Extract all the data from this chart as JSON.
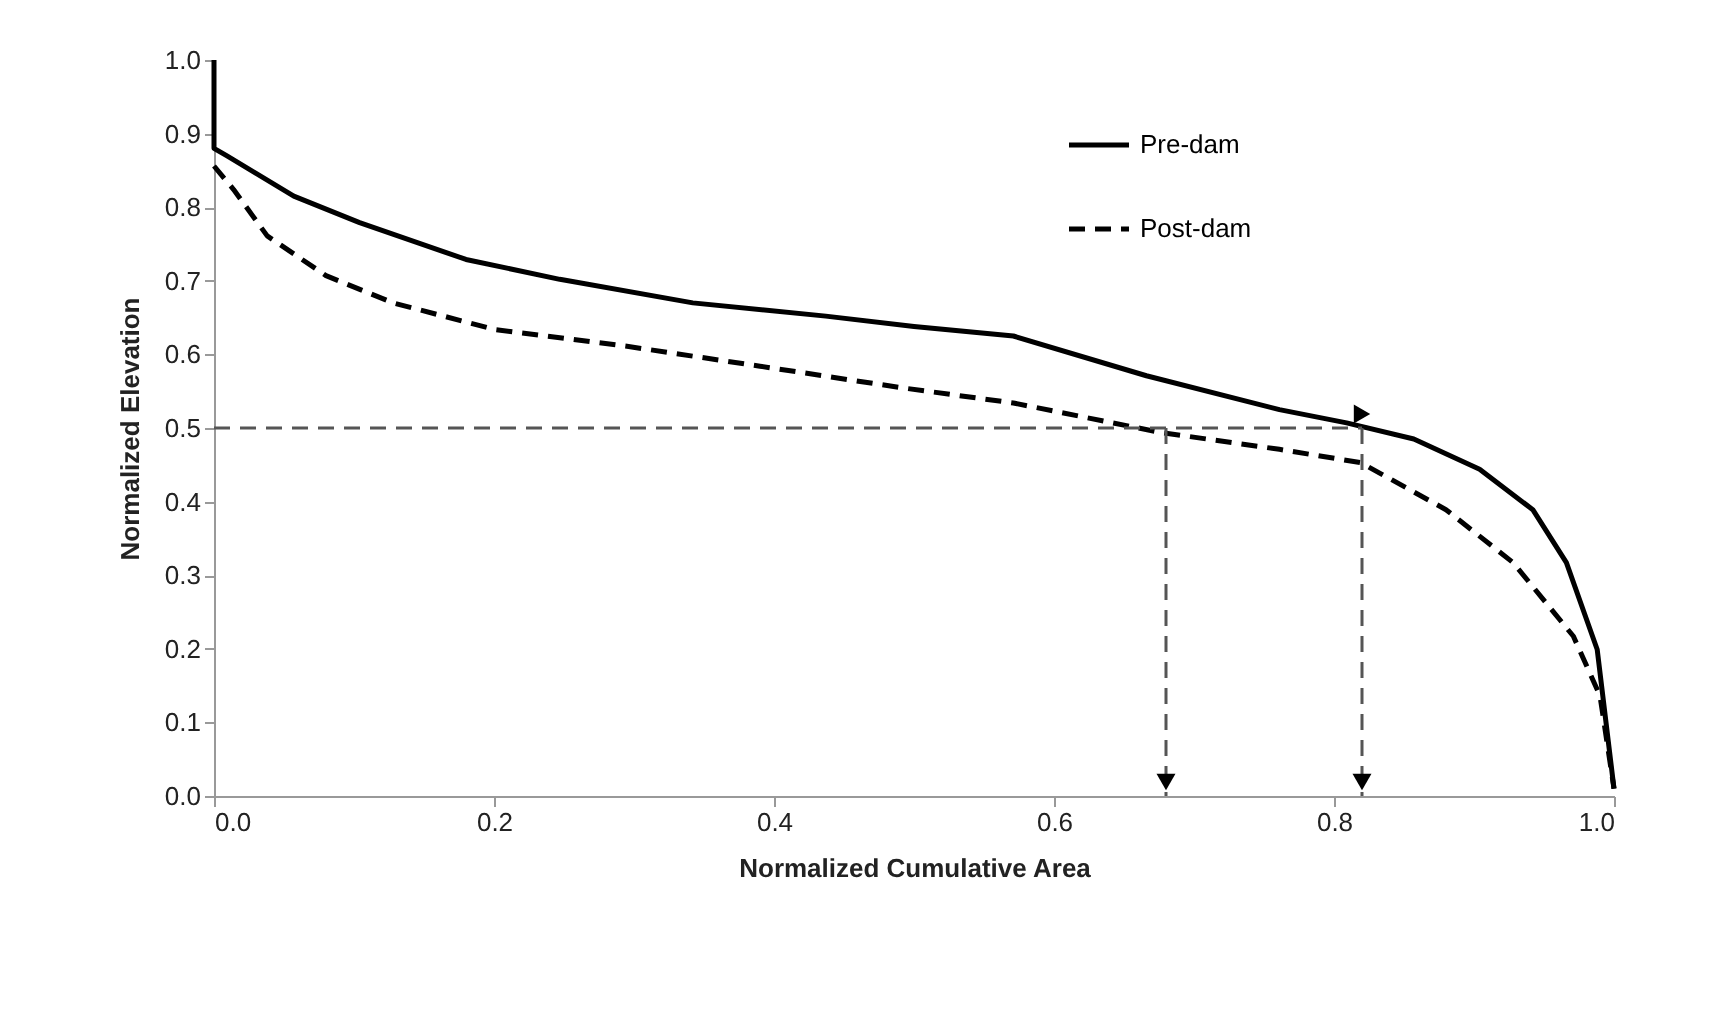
{
  "chart_data": {
    "type": "line",
    "xlabel": "Normalized Cumulative Area",
    "ylabel": "Normalized Elevation",
    "xlim": [
      0,
      1
    ],
    "ylim": [
      0,
      1
    ],
    "xticks": [
      {
        "value": 0,
        "label": "0.0"
      },
      {
        "value": 0.2,
        "label": "0.2"
      },
      {
        "value": 0.4,
        "label": "0.4"
      },
      {
        "value": 0.6,
        "label": "0.6"
      },
      {
        "value": 0.8,
        "label": "0.8"
      },
      {
        "value": 1,
        "label": "1.0"
      }
    ],
    "yticks": [
      {
        "value": 0,
        "label": "0.0"
      },
      {
        "value": 0.1,
        "label": "0.1"
      },
      {
        "value": 0.2,
        "label": "0.2"
      },
      {
        "value": 0.3,
        "label": "0.3"
      },
      {
        "value": 0.4,
        "label": "0.4"
      },
      {
        "value": 0.5,
        "label": "0.5"
      },
      {
        "value": 0.6,
        "label": "0.6"
      },
      {
        "value": 0.7,
        "label": "0.7"
      },
      {
        "value": 0.8,
        "label": "0.8"
      },
      {
        "value": 0.9,
        "label": "0.9"
      },
      {
        "value": 1,
        "label": "1.0"
      }
    ],
    "grid": false,
    "legend": "top right",
    "marker": "none",
    "series": [
      {
        "name": "Pre-dam",
        "color": "#000000",
        "line_style": "solid",
        "x": [
          0,
          0,
          0.009,
          0.057,
          0.104,
          0.18,
          0.247,
          0.342,
          0.437,
          0.5,
          0.571,
          0.666,
          0.761,
          0.809,
          0.857,
          0.904,
          0.942,
          0.966,
          0.988,
          1.0
        ],
        "values": [
          1.0,
          0.88,
          0.87,
          0.815,
          0.779,
          0.729,
          0.702,
          0.67,
          0.652,
          0.638,
          0.625,
          0.571,
          0.525,
          0.507,
          0.485,
          0.444,
          0.389,
          0.317,
          0.199,
          0.01
        ]
      },
      {
        "name": "Post-dam",
        "color": "#000000",
        "line_style": "dashed",
        "x": [
          0,
          0.014,
          0.038,
          0.08,
          0.128,
          0.2,
          0.295,
          0.39,
          0.49,
          0.571,
          0.676,
          0.761,
          0.819,
          0.88,
          0.928,
          0.971,
          0.99,
          1.0
        ],
        "values": [
          0.856,
          0.824,
          0.761,
          0.707,
          0.67,
          0.634,
          0.611,
          0.584,
          0.555,
          0.534,
          0.494,
          0.471,
          0.453,
          0.389,
          0.317,
          0.217,
          0.136,
          0.01
        ]
      }
    ],
    "ref_lines": [
      {
        "axis": "y",
        "value": 0.5,
        "color": "#555555",
        "line_style": "dashed"
      },
      {
        "axis": "x",
        "value": 0.68,
        "color": "#555555",
        "line_style": "dashed"
      },
      {
        "axis": "x",
        "value": 0.82,
        "color": "#555555",
        "line_style": "dashed"
      }
    ]
  }
}
